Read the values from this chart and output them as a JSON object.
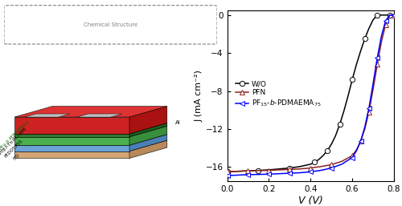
{
  "xlabel": "V (V)",
  "ylabel": "J (mA cm⁻²)",
  "xlim": [
    0.0,
    0.8
  ],
  "ylim": [
    -17.5,
    0.5
  ],
  "yticks": [
    0,
    -4,
    -8,
    -12,
    -16
  ],
  "xticks": [
    0.0,
    0.2,
    0.4,
    0.6,
    0.8
  ],
  "legend_labels": [
    "W/O",
    "PFN",
    "PF$_{15}$-$b$-PDMAEMA$_{75}$"
  ],
  "colors": [
    "black",
    "#8B2020",
    "blue"
  ],
  "bg_color": "white",
  "wo_V": [
    0.0,
    0.05,
    0.1,
    0.15,
    0.2,
    0.25,
    0.3,
    0.35,
    0.4,
    0.42,
    0.44,
    0.46,
    0.48,
    0.5,
    0.52,
    0.54,
    0.56,
    0.58,
    0.6,
    0.62,
    0.64,
    0.66,
    0.68,
    0.7,
    0.72,
    0.74,
    0.76,
    0.78,
    0.8
  ],
  "wo_J": [
    -16.5,
    -16.45,
    -16.4,
    -16.35,
    -16.3,
    -16.2,
    -16.1,
    -15.95,
    -15.7,
    -15.5,
    -15.2,
    -14.8,
    -14.3,
    -13.6,
    -12.7,
    -11.5,
    -10.1,
    -8.5,
    -6.8,
    -5.2,
    -3.8,
    -2.5,
    -1.4,
    -0.5,
    0.0,
    0.0,
    0.0,
    0.0,
    0.0
  ],
  "pfn_V": [
    0.0,
    0.05,
    0.1,
    0.15,
    0.2,
    0.25,
    0.3,
    0.35,
    0.4,
    0.45,
    0.5,
    0.55,
    0.6,
    0.62,
    0.64,
    0.66,
    0.68,
    0.7,
    0.72,
    0.74,
    0.76,
    0.78,
    0.8
  ],
  "pfn_J": [
    -16.5,
    -16.45,
    -16.4,
    -16.38,
    -16.35,
    -16.3,
    -16.25,
    -16.2,
    -16.1,
    -15.95,
    -15.75,
    -15.4,
    -14.8,
    -14.2,
    -13.3,
    -12.0,
    -10.2,
    -7.8,
    -5.2,
    -2.8,
    -1.0,
    0.0,
    0.0
  ],
  "pf_V": [
    0.0,
    0.05,
    0.1,
    0.15,
    0.2,
    0.25,
    0.3,
    0.35,
    0.4,
    0.45,
    0.5,
    0.55,
    0.6,
    0.62,
    0.64,
    0.66,
    0.68,
    0.7,
    0.72,
    0.74,
    0.76,
    0.78,
    0.8
  ],
  "pf_J": [
    -16.9,
    -16.85,
    -16.8,
    -16.78,
    -16.75,
    -16.7,
    -16.65,
    -16.6,
    -16.5,
    -16.35,
    -16.1,
    -15.7,
    -15.0,
    -14.3,
    -13.3,
    -11.8,
    -9.8,
    -7.2,
    -4.5,
    -2.2,
    -0.6,
    0.0,
    0.0
  ],
  "marker_wo_every": 3,
  "marker_pfn_every": 2,
  "marker_pf_every": 2,
  "marker_size": 4.5,
  "linewidth": 1.1,
  "ylabel_rotation": 90,
  "left_panel_color": "#f0f0f0"
}
